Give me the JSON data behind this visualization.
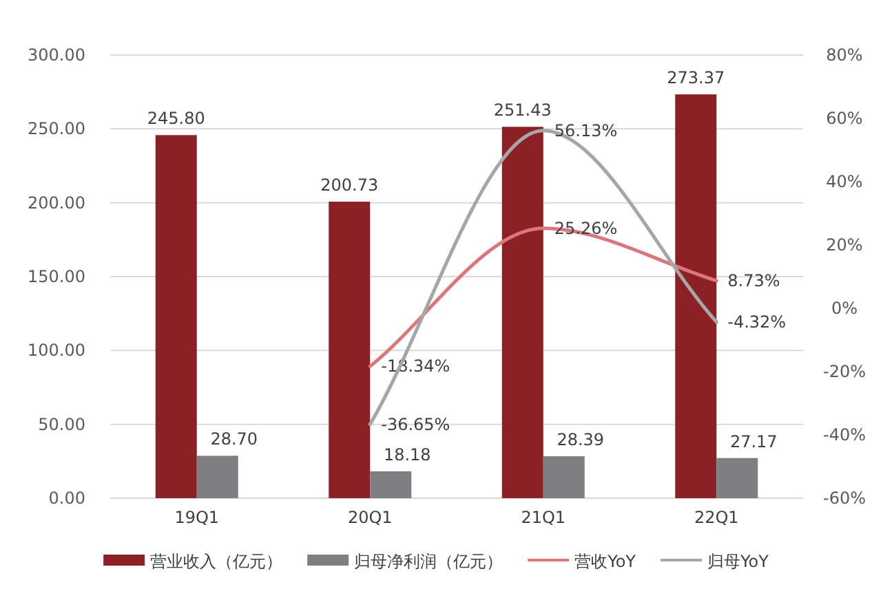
{
  "chart_data": {
    "type": "bar",
    "categories": [
      "19Q1",
      "20Q1",
      "21Q1",
      "22Q1"
    ],
    "series": [
      {
        "name": "营业收入（亿元）",
        "color": "#8b2025",
        "values": [
          245.8,
          200.73,
          251.43,
          273.37
        ],
        "value_labels": [
          "245.80",
          "200.73",
          "251.43",
          "273.37"
        ]
      },
      {
        "name": "归母净利润（亿元）",
        "color": "#7f7f83",
        "values": [
          28.7,
          18.18,
          28.39,
          27.17
        ],
        "value_labels": [
          "28.70",
          "18.18",
          "28.39",
          "27.17"
        ]
      },
      {
        "name": "营收YoY",
        "type": "line",
        "axis": "y2",
        "color": "#d9777a",
        "values": [
          null,
          -18.34,
          25.26,
          8.73
        ],
        "value_labels": [
          null,
          "-18.34%",
          "25.26%",
          "8.73%"
        ]
      },
      {
        "name": "归母YoY",
        "type": "line",
        "axis": "y2",
        "color": "#a6a6a6",
        "values": [
          null,
          -36.65,
          56.13,
          -4.32
        ],
        "value_labels": [
          null,
          "-36.65%",
          "56.13%",
          "-4.32%"
        ]
      }
    ],
    "ylim": [
      0,
      300
    ],
    "yticks": [
      {
        "value": 0,
        "label": "0.00"
      },
      {
        "value": 50,
        "label": "50.00"
      },
      {
        "value": 100,
        "label": "100.00"
      },
      {
        "value": 150,
        "label": "150.00"
      },
      {
        "value": 200,
        "label": "200.00"
      },
      {
        "value": 250,
        "label": "250.00"
      },
      {
        "value": 300,
        "label": "300.00"
      }
    ],
    "y2lim": [
      -60,
      80
    ],
    "y2ticks": [
      {
        "value": -60,
        "label": "-60%"
      },
      {
        "value": -40,
        "label": "-40%"
      },
      {
        "value": -20,
        "label": "-20%"
      },
      {
        "value": 0,
        "label": "0%"
      },
      {
        "value": 20,
        "label": "20%"
      },
      {
        "value": 40,
        "label": "40%"
      },
      {
        "value": 60,
        "label": "60%"
      },
      {
        "value": 80,
        "label": "80%"
      }
    ],
    "grid": "y",
    "legend": "bottom"
  }
}
